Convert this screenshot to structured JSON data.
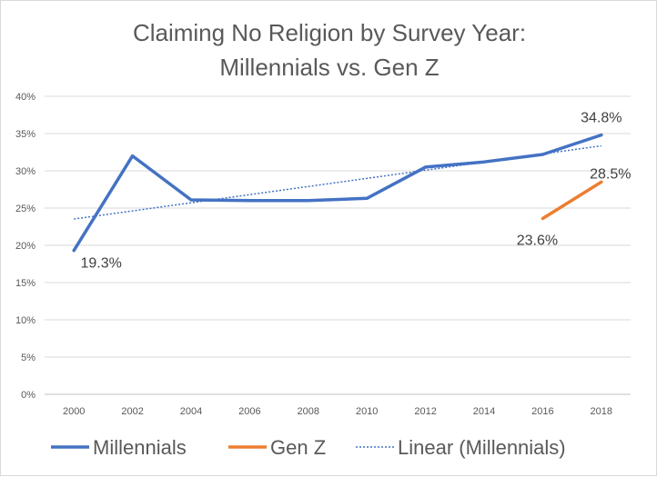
{
  "chart_data": {
    "type": "line",
    "title_lines": [
      "Claiming No Religion by Survey Year:",
      "Millennials vs. Gen Z"
    ],
    "x": [
      2000,
      2002,
      2004,
      2006,
      2008,
      2010,
      2012,
      2014,
      2016,
      2018
    ],
    "ylim": [
      0,
      40
    ],
    "y_ticks": [
      0,
      5,
      10,
      15,
      20,
      25,
      30,
      35,
      40
    ],
    "y_tick_labels": [
      "0%",
      "5%",
      "10%",
      "15%",
      "20%",
      "25%",
      "30%",
      "35%",
      "40%"
    ],
    "x_tick_labels": [
      "2000",
      "2002",
      "2004",
      "2006",
      "2008",
      "2010",
      "2012",
      "2014",
      "2016",
      "2018"
    ],
    "series": [
      {
        "name": "Millennials",
        "color": "#4472c4",
        "values": [
          19.3,
          32.0,
          26.1,
          26.0,
          26.0,
          26.3,
          30.5,
          31.2,
          32.2,
          34.8
        ]
      },
      {
        "name": "Gen Z",
        "color": "#ed7d31",
        "values": [
          null,
          null,
          null,
          null,
          null,
          null,
          null,
          null,
          23.6,
          28.5
        ]
      }
    ],
    "trendline": {
      "name": "Linear (Millennials)",
      "color": "#4472c4",
      "of": "Millennials",
      "style": "dotted"
    },
    "data_labels": [
      {
        "series": "Millennials",
        "x": 2000,
        "text": "19.3%"
      },
      {
        "series": "Millennials",
        "x": 2018,
        "text": "34.8%"
      },
      {
        "series": "Gen Z",
        "x": 2016,
        "text": "23.6%"
      },
      {
        "series": "Gen Z",
        "x": 2018,
        "text": "28.5%"
      }
    ],
    "legend": {
      "position": "bottom",
      "entries": [
        "Millennials",
        "Gen Z",
        "Linear (Millennials)"
      ]
    },
    "grid": true
  }
}
